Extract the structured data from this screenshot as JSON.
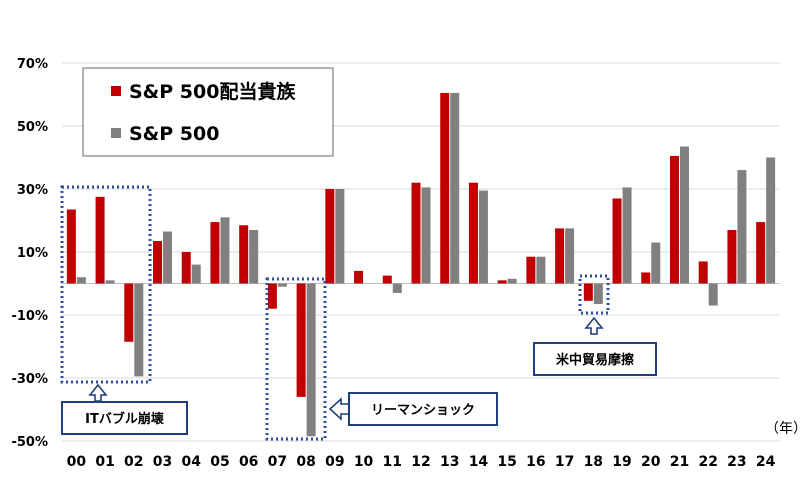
{
  "chart_data": {
    "type": "bar",
    "categories": [
      "00",
      "01",
      "02",
      "03",
      "04",
      "05",
      "06",
      "07",
      "08",
      "09",
      "10",
      "11",
      "12",
      "13",
      "14",
      "15",
      "16",
      "17",
      "18",
      "19",
      "20",
      "21",
      "22",
      "23",
      "24"
    ],
    "series": [
      {
        "name": "S&P 500配当貴族",
        "color": "#c00000",
        "values": [
          23.5,
          27.5,
          -18.5,
          13.5,
          10.0,
          19.5,
          18.5,
          -8.0,
          -36.0,
          30.0,
          4.0,
          2.5,
          32.0,
          60.5,
          32.0,
          1.0,
          8.5,
          17.5,
          -5.5,
          27.0,
          3.5,
          40.5,
          7.0,
          17.0,
          19.5
        ]
      },
      {
        "name": "S&P 500",
        "color": "#808080",
        "values": [
          2.0,
          1.0,
          -29.5,
          16.5,
          6.0,
          21.0,
          17.0,
          -1.0,
          -48.5,
          30.0,
          0.0,
          -3.0,
          30.5,
          60.5,
          29.5,
          1.5,
          8.5,
          17.5,
          -6.5,
          30.5,
          13.0,
          43.5,
          -7.0,
          36.0,
          40.0
        ]
      }
    ],
    "ylim": [
      -50,
      70
    ],
    "yticks": [
      "70%",
      "50%",
      "30%",
      "10%",
      "-10%",
      "-30%",
      "-50%"
    ],
    "y_unit": "（年）",
    "grid": true,
    "legend": "top-left",
    "annotations": [
      {
        "text": "ITバブル崩壊",
        "from": "00",
        "to": "02"
      },
      {
        "text": "リーマンショック",
        "from": "07",
        "to": "08"
      },
      {
        "text": "米中貿易摩擦",
        "from": "18",
        "to": "18"
      }
    ]
  }
}
